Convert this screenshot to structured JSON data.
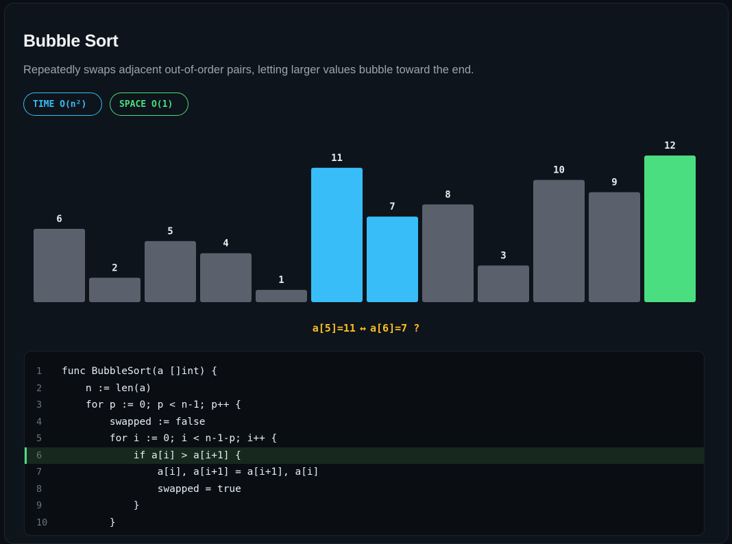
{
  "title": "Bubble Sort",
  "subtitle": "Repeatedly swaps adjacent out-of-order pairs, letting larger values bubble toward the end.",
  "badges": {
    "time": "TIME O(n²)",
    "space": "SPACE O(1)"
  },
  "colors": {
    "default": "#5b616c",
    "comparing": "#38bdf8",
    "sorted": "#4ade80",
    "label": "#e6edf3",
    "accent": "#fbbf24"
  },
  "chart_data": {
    "type": "bar",
    "values": [
      6,
      2,
      5,
      4,
      1,
      11,
      7,
      8,
      3,
      10,
      9,
      12
    ],
    "states": [
      "default",
      "default",
      "default",
      "default",
      "default",
      "comparing",
      "comparing",
      "default",
      "default",
      "default",
      "default",
      "sorted"
    ],
    "ylim": [
      0,
      12
    ]
  },
  "compare": {
    "left": "a[5]=11",
    "arrow": "↔",
    "right": "a[6]=7 ?"
  },
  "code": {
    "active_line": 6,
    "lines": [
      {
        "n": "1",
        "text": "func BubbleSort(a []int) {"
      },
      {
        "n": "2",
        "text": "    n := len(a)"
      },
      {
        "n": "3",
        "text": "    for p := 0; p < n-1; p++ {"
      },
      {
        "n": "4",
        "text": "        swapped := false"
      },
      {
        "n": "5",
        "text": "        for i := 0; i < n-1-p; i++ {"
      },
      {
        "n": "6",
        "text": "            if a[i] > a[i+1] {"
      },
      {
        "n": "7",
        "text": "                a[i], a[i+1] = a[i+1], a[i]"
      },
      {
        "n": "8",
        "text": "                swapped = true"
      },
      {
        "n": "9",
        "text": "            }"
      },
      {
        "n": "10",
        "text": "        }"
      }
    ]
  }
}
